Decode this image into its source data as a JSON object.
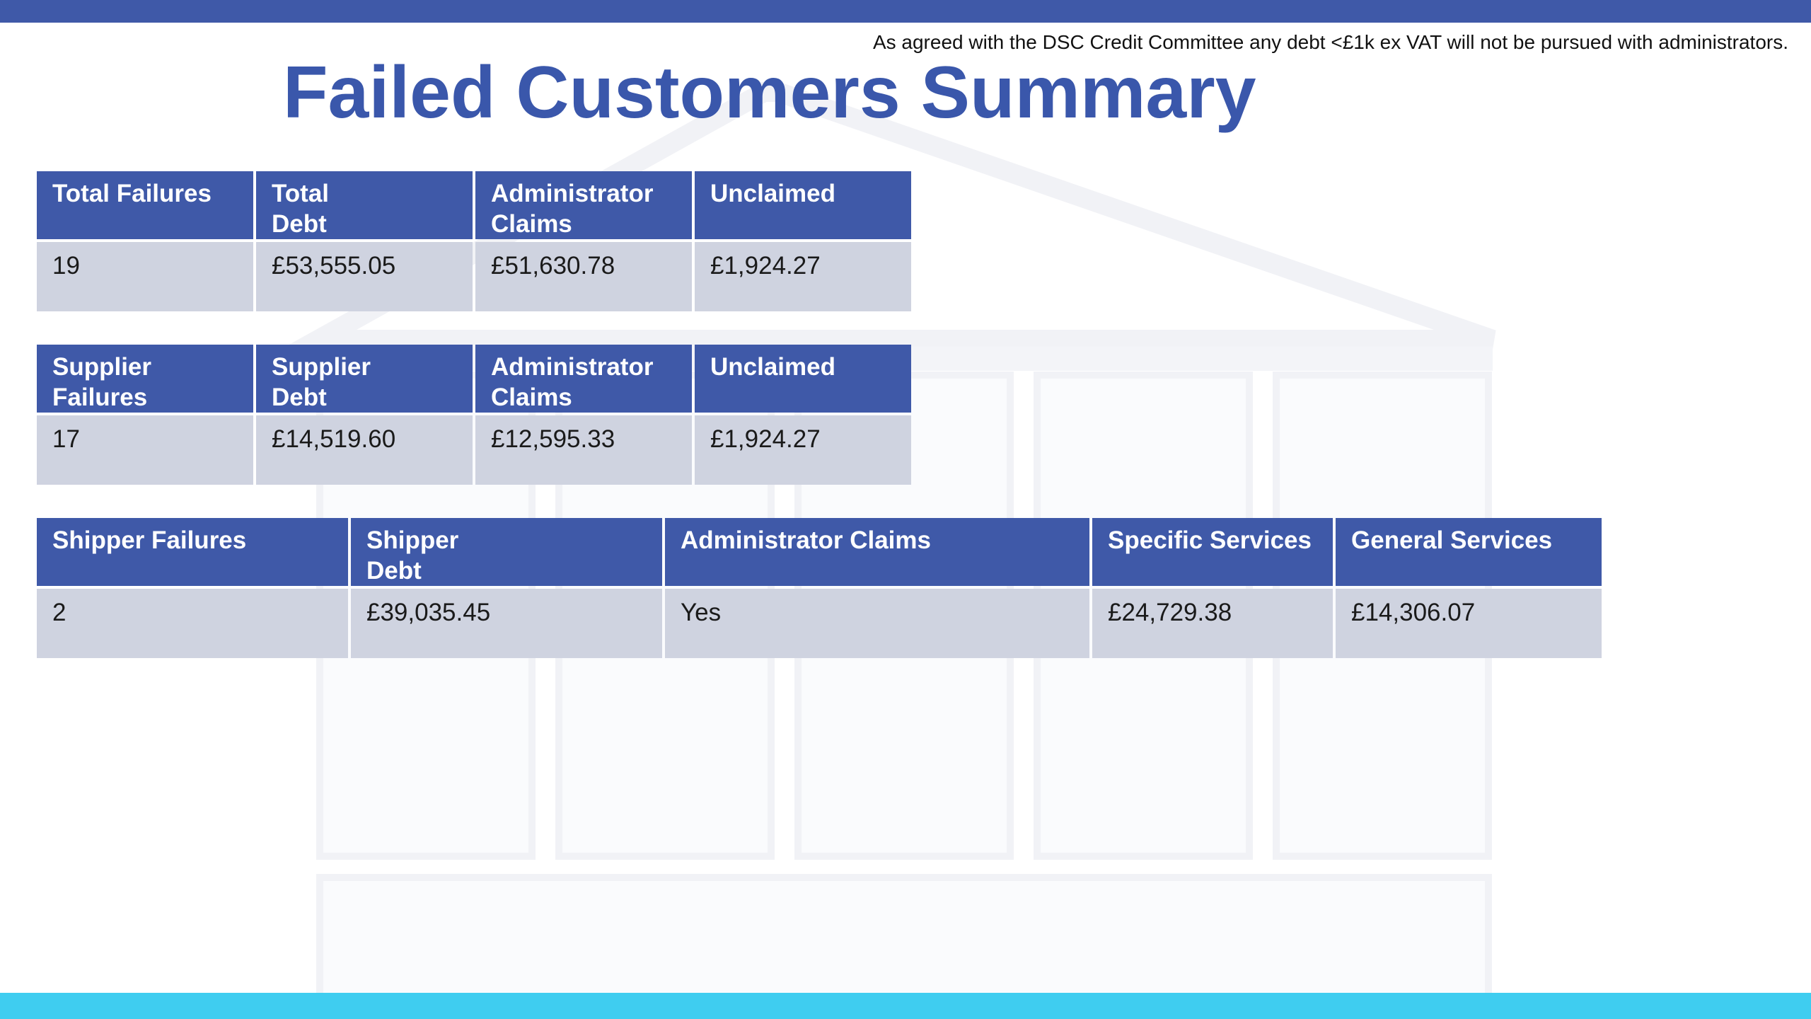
{
  "slide": {
    "disclaimer": "As agreed with the DSC Credit Committee any debt <£1k ex VAT will not be pursued with administrators.",
    "title": "Failed Customers Summary"
  },
  "colors": {
    "header_bar": "#3f59a8",
    "footer_bar": "#3fcdf0",
    "title_text": "#3a57ab",
    "table_header_bg": "#3f59a8",
    "table_cell_bg": "#cfd3e0"
  },
  "tables": {
    "total": {
      "headers": [
        "Total Failures",
        "Total\nDebt",
        "Administrator\nClaims",
        "Unclaimed"
      ],
      "row": [
        "19",
        "£53,555.05",
        "£51,630.78",
        "£1,924.27"
      ]
    },
    "supplier": {
      "headers": [
        "Supplier\nFailures",
        "Supplier\nDebt",
        "Administrator\nClaims",
        "Unclaimed"
      ],
      "row": [
        "17",
        "£14,519.60",
        "£12,595.33",
        "£1,924.27"
      ]
    },
    "shipper": {
      "headers": [
        "Shipper Failures",
        "Shipper\nDebt",
        "Administrator Claims",
        "Specific Services",
        "General Services"
      ],
      "row": [
        "2",
        "£39,035.45",
        "Yes",
        "£24,729.38",
        "£14,306.07"
      ]
    }
  }
}
